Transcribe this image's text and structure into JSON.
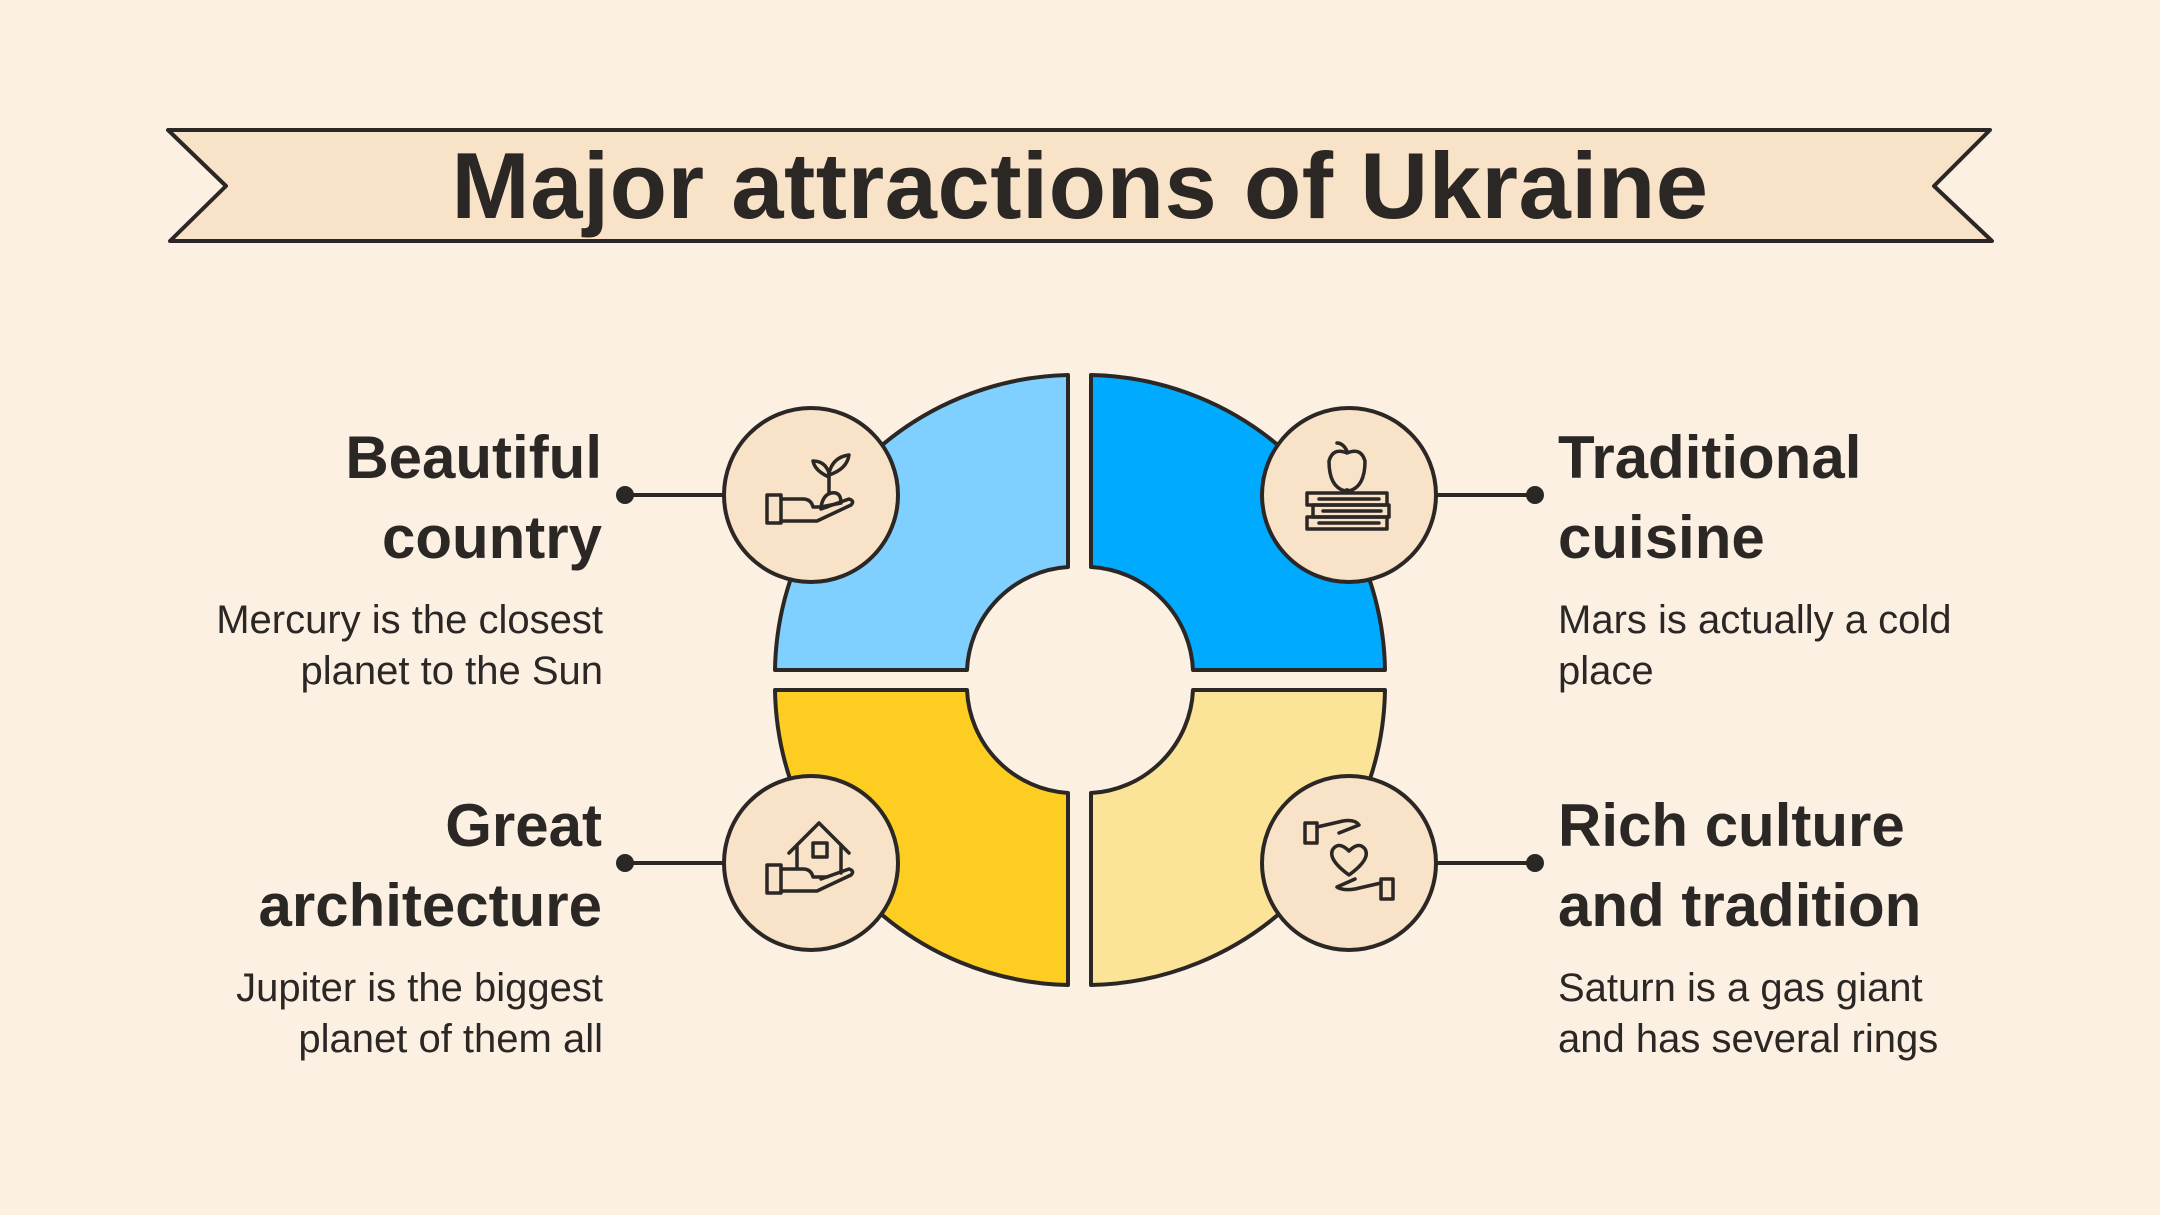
{
  "title": "Major attractions of Ukraine",
  "colors": {
    "background": "#fcf0e3",
    "ribbon": "#f8e2c8",
    "outline": "#2b2725",
    "light_blue": "#80d0ff",
    "blue": "#00aaff",
    "yellow": "#fecd22",
    "light_yellow": "#fbe497",
    "icon_circle": "#f8e2c8"
  },
  "items": [
    {
      "heading": [
        "Beautiful",
        "country"
      ],
      "description": [
        "Mercury is the closest",
        "planet to the Sun"
      ],
      "icon": "hand-plant-icon"
    },
    {
      "heading": [
        "Traditional",
        "cuisine"
      ],
      "description": [
        "Mars is actually a cold",
        "place"
      ],
      "icon": "books-apple-icon"
    },
    {
      "heading": [
        "Great",
        "architecture"
      ],
      "description": [
        "Jupiter is the biggest",
        "planet of them all"
      ],
      "icon": "hand-house-icon"
    },
    {
      "heading": [
        "Rich culture",
        "and tradition"
      ],
      "description": [
        "Saturn is a gas giant",
        "and has several rings"
      ],
      "icon": "hands-heart-icon"
    }
  ]
}
